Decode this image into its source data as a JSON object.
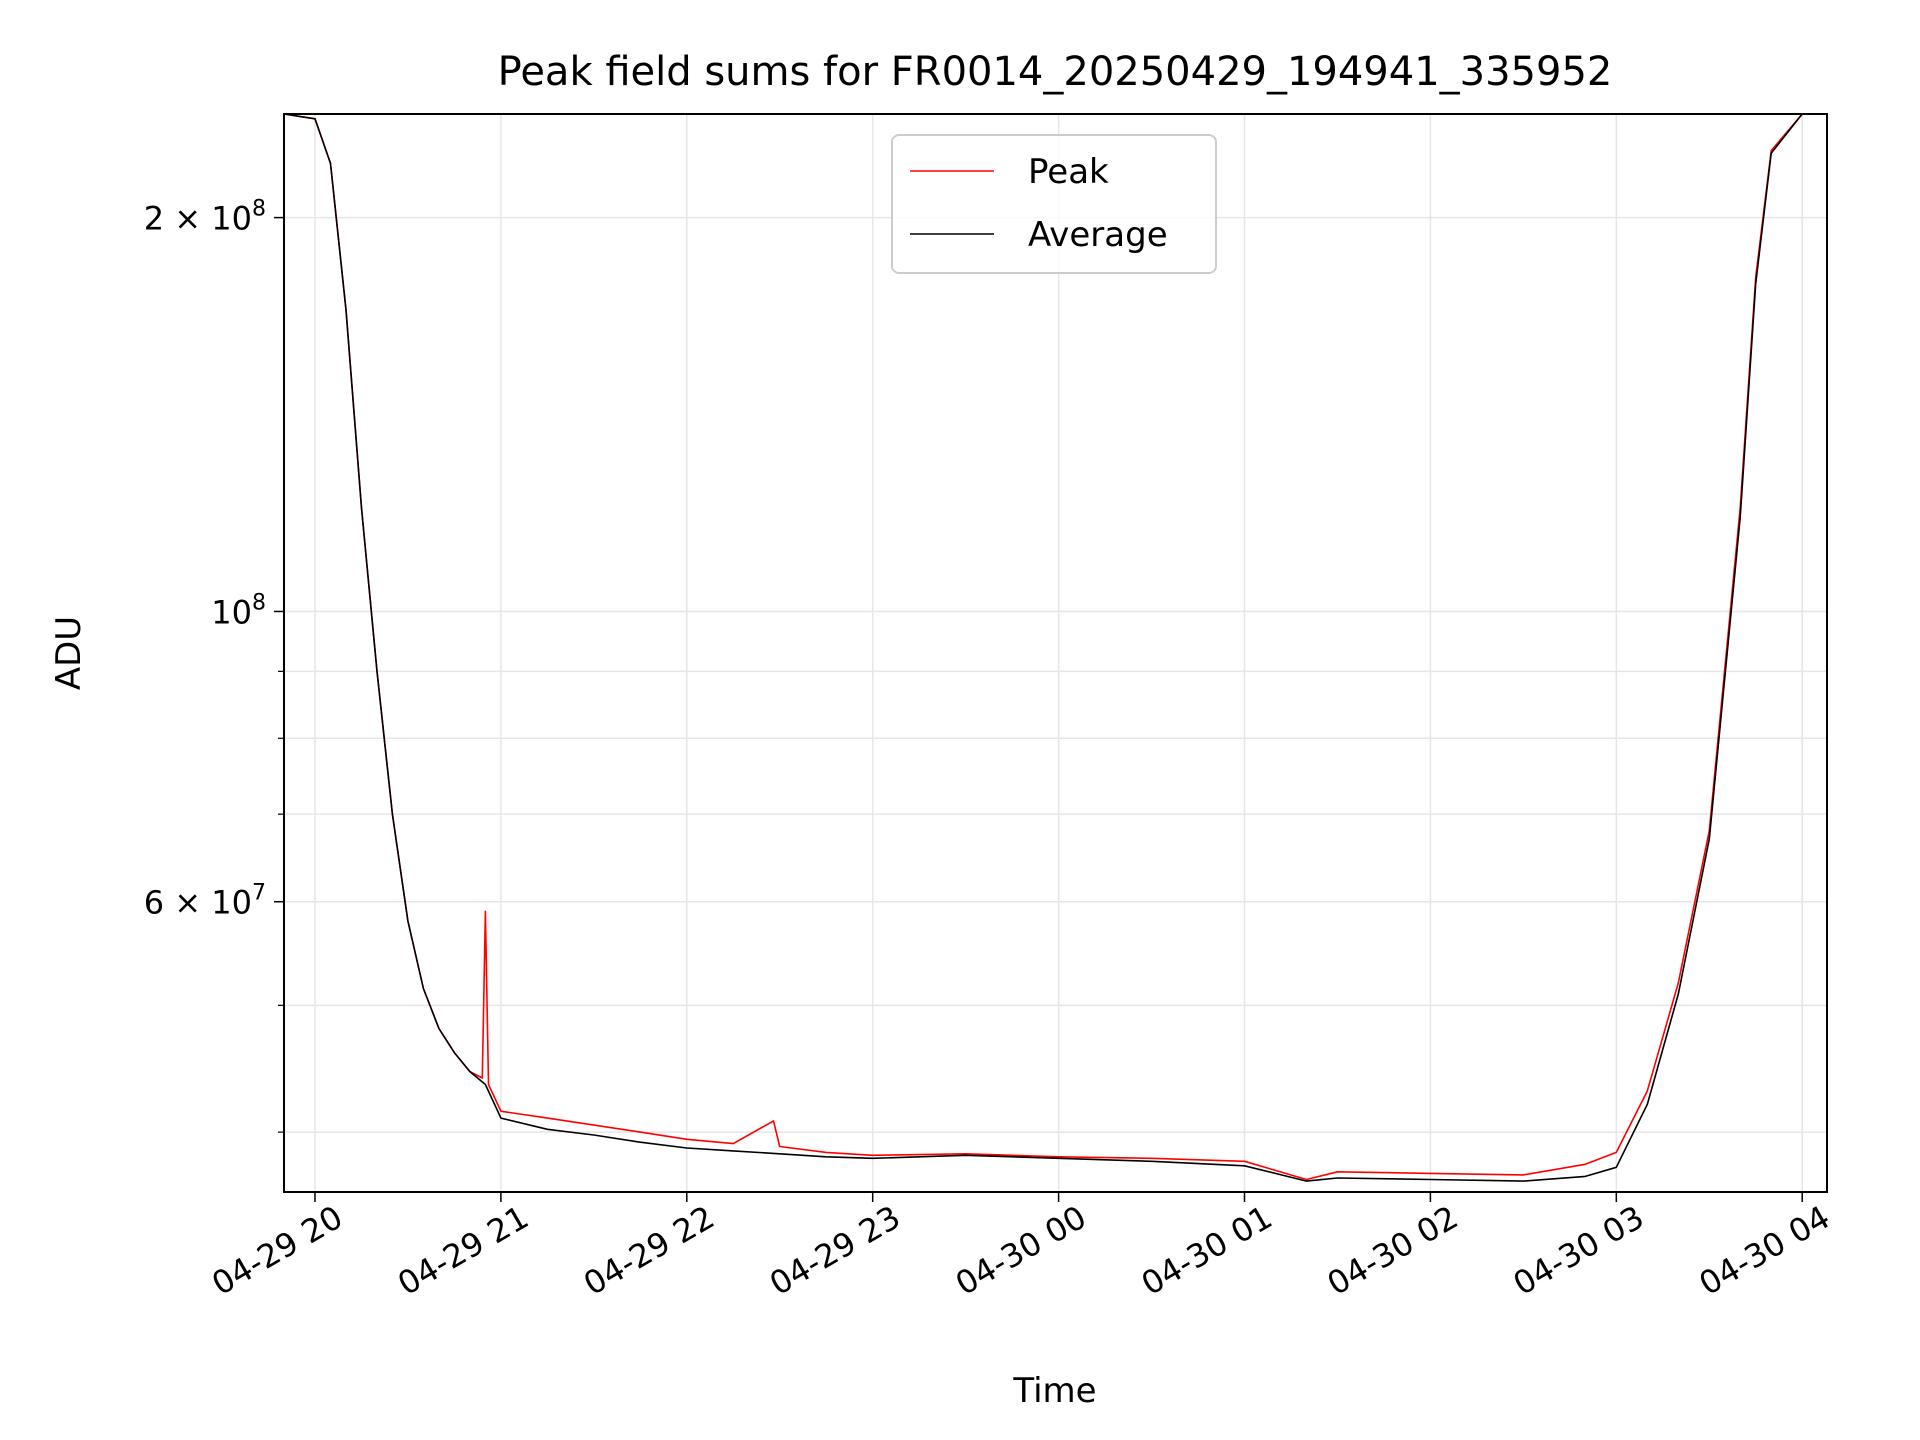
{
  "chart_data": {
    "type": "line",
    "title": "Peak field sums for FR0014_20250429_194941_335952",
    "xlabel": "Time",
    "ylabel": "ADU",
    "yscale": "log",
    "xlim": [
      "2025-04-29 19:50",
      "2025-04-30 04:08"
    ],
    "ylim": [
      36000000,
      240000000
    ],
    "x_ticks": [
      "04-29 20",
      "04-29 21",
      "04-29 22",
      "04-29 23",
      "04-30 00",
      "04-30 01",
      "04-30 02",
      "04-30 03",
      "04-30 04"
    ],
    "y_ticks": [
      {
        "value": 200000000,
        "base": "2 × 10",
        "exp": "8"
      },
      {
        "value": 100000000,
        "base": "10",
        "exp": "8"
      },
      {
        "value": 60000000,
        "base": "6 × 10",
        "exp": "7"
      }
    ],
    "grid": true,
    "legend_position": "top-center",
    "series": [
      {
        "name": "Peak",
        "color": "#ff0000",
        "x": [
          "2025-04-29 19:50",
          "2025-04-29 20:00",
          "2025-04-29 20:05",
          "2025-04-29 20:10",
          "2025-04-29 20:15",
          "2025-04-29 20:20",
          "2025-04-29 20:25",
          "2025-04-29 20:30",
          "2025-04-29 20:35",
          "2025-04-29 20:40",
          "2025-04-29 20:45",
          "2025-04-29 20:50",
          "2025-04-29 20:54",
          "2025-04-29 20:55",
          "2025-04-29 20:56",
          "2025-04-29 21:00",
          "2025-04-29 21:15",
          "2025-04-29 21:30",
          "2025-04-29 21:45",
          "2025-04-29 22:00",
          "2025-04-29 22:15",
          "2025-04-29 22:28",
          "2025-04-29 22:30",
          "2025-04-29 22:45",
          "2025-04-29 23:00",
          "2025-04-29 23:30",
          "2025-04-30 00:00",
          "2025-04-30 00:30",
          "2025-04-30 01:00",
          "2025-04-30 01:20",
          "2025-04-30 01:30",
          "2025-04-30 02:00",
          "2025-04-30 02:30",
          "2025-04-30 02:50",
          "2025-04-30 03:00",
          "2025-04-30 03:10",
          "2025-04-30 03:20",
          "2025-04-30 03:30",
          "2025-04-30 03:40",
          "2025-04-30 03:45",
          "2025-04-30 03:50",
          "2025-04-30 04:00",
          "2025-04-30 04:08"
        ],
        "y": [
          240000000,
          238000000,
          220000000,
          170000000,
          120000000,
          90000000,
          70000000,
          58000000,
          51500000,
          48000000,
          46000000,
          44500000,
          44000000,
          59000000,
          43500000,
          41500000,
          41000000,
          40500000,
          40000000,
          39500000,
          39200000,
          40800000,
          39000000,
          38600000,
          38400000,
          38500000,
          38300000,
          38200000,
          38000000,
          36800000,
          37300000,
          37200000,
          37100000,
          37800000,
          38600000,
          43000000,
          52000000,
          68000000,
          120000000,
          180000000,
          225000000,
          240000000,
          240000000
        ]
      },
      {
        "name": "Average",
        "color": "#000000",
        "x": [
          "2025-04-29 19:50",
          "2025-04-29 20:00",
          "2025-04-29 20:05",
          "2025-04-29 20:10",
          "2025-04-29 20:15",
          "2025-04-29 20:20",
          "2025-04-29 20:25",
          "2025-04-29 20:30",
          "2025-04-29 20:35",
          "2025-04-29 20:40",
          "2025-04-29 20:45",
          "2025-04-29 20:50",
          "2025-04-29 20:55",
          "2025-04-29 21:00",
          "2025-04-29 21:15",
          "2025-04-29 21:30",
          "2025-04-29 21:45",
          "2025-04-29 22:00",
          "2025-04-29 22:15",
          "2025-04-29 22:30",
          "2025-04-29 22:45",
          "2025-04-29 23:00",
          "2025-04-29 23:30",
          "2025-04-30 00:00",
          "2025-04-30 00:30",
          "2025-04-30 01:00",
          "2025-04-30 01:20",
          "2025-04-30 01:30",
          "2025-04-30 02:00",
          "2025-04-30 02:30",
          "2025-04-30 02:50",
          "2025-04-30 03:00",
          "2025-04-30 03:10",
          "2025-04-30 03:20",
          "2025-04-30 03:30",
          "2025-04-30 03:40",
          "2025-04-30 03:45",
          "2025-04-30 03:50",
          "2025-04-30 04:00",
          "2025-04-30 04:08"
        ],
        "y": [
          240000000,
          238000000,
          220000000,
          170000000,
          120000000,
          90000000,
          70000000,
          58000000,
          51500000,
          48000000,
          46000000,
          44500000,
          43500000,
          41000000,
          40200000,
          39800000,
          39300000,
          38900000,
          38700000,
          38500000,
          38300000,
          38200000,
          38400000,
          38200000,
          38000000,
          37700000,
          36700000,
          36900000,
          36800000,
          36700000,
          37000000,
          37600000,
          42000000,
          51000000,
          67000000,
          118000000,
          178000000,
          224000000,
          240000000,
          240000000
        ]
      }
    ]
  }
}
